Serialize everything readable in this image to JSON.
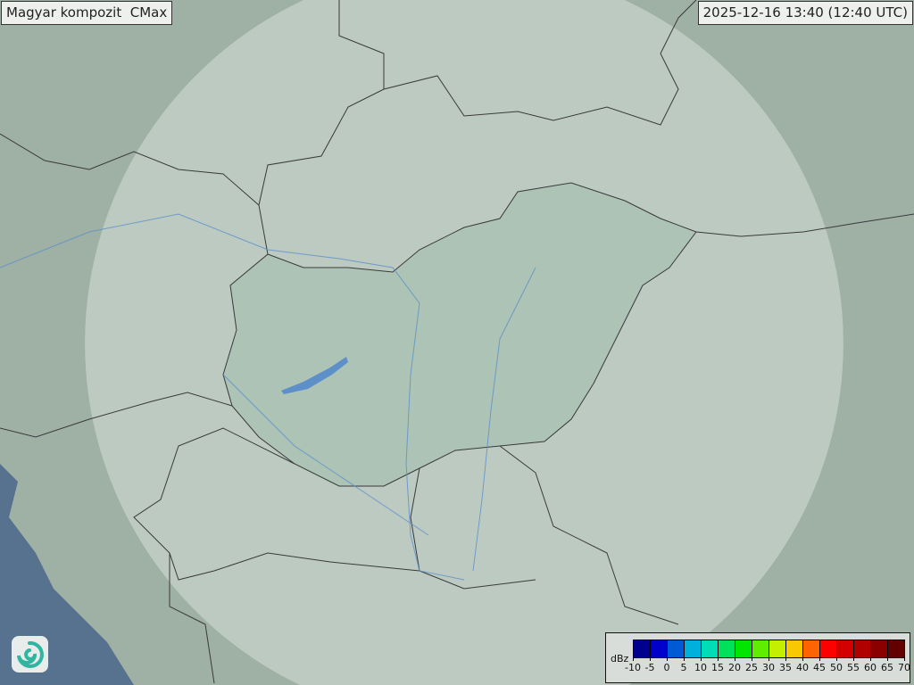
{
  "title": "Magyar kompozit  CMax",
  "timestamp": "2025-12-16 13:40 (12:40 UTC)",
  "legend": {
    "unit": "dBz",
    "ticks": [
      "-10",
      "-5",
      "0",
      "5",
      "10",
      "15",
      "20",
      "25",
      "30",
      "35",
      "40",
      "45",
      "50",
      "55",
      "60",
      "65",
      "70"
    ],
    "colors": [
      "#00008e",
      "#0000cc",
      "#005ad6",
      "#00b0dc",
      "#00dcb8",
      "#00e05a",
      "#00e600",
      "#60ee00",
      "#c4f000",
      "#f8c800",
      "#ff6400",
      "#ff0000",
      "#d40000",
      "#b00000",
      "#8a0000",
      "#620000"
    ]
  },
  "map_colors": {
    "land": "#9fb0a5",
    "coverage": "#c9d5ce",
    "hungary": "#a8c1b3",
    "sea": "#56728e",
    "border": "#3a3a3a",
    "river": "#5d8fc8"
  },
  "logo": "swirl-logo-icon"
}
